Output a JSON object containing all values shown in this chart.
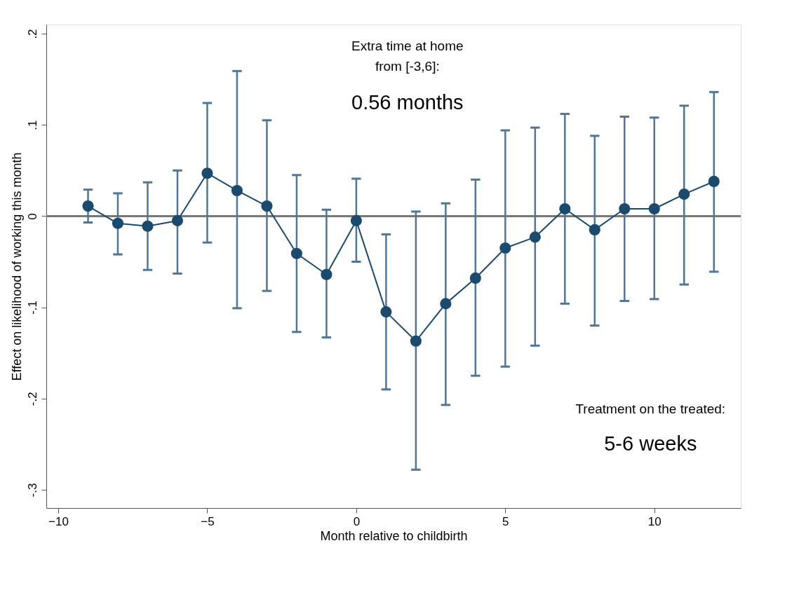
{
  "chart_data": {
    "type": "line",
    "xlabel": "Month relative to childbirth",
    "ylabel": "Effect on likelihood of working this month",
    "x": [
      -9,
      -8,
      -7,
      -6,
      -5,
      -4,
      -3,
      -2,
      -1,
      0,
      1,
      2,
      3,
      4,
      5,
      6,
      7,
      8,
      9,
      10,
      11,
      12
    ],
    "series": [
      {
        "color": "#1a4a6e",
        "values": [
          0.011,
          -0.008,
          -0.011,
          -0.005,
          0.047,
          0.028,
          0.011,
          -0.041,
          -0.064,
          -0.005,
          -0.105,
          -0.137,
          -0.096,
          -0.068,
          -0.035,
          -0.023,
          0.008,
          -0.015,
          0.008,
          0.008,
          0.024,
          0.038
        ],
        "errors": [
          [
            -0.007,
            0.029
          ],
          [
            -0.042,
            0.025
          ],
          [
            -0.059,
            0.037
          ],
          [
            -0.063,
            0.05
          ],
          [
            -0.029,
            0.124
          ],
          [
            -0.101,
            0.159
          ],
          [
            -0.082,
            0.105
          ],
          [
            -0.127,
            0.045
          ],
          [
            -0.133,
            0.007
          ],
          [
            -0.05,
            0.041
          ],
          [
            -0.19,
            -0.02
          ],
          [
            -0.278,
            0.005
          ],
          [
            -0.207,
            0.014
          ],
          [
            -0.175,
            0.04
          ],
          [
            -0.165,
            0.094
          ],
          [
            -0.142,
            0.097
          ],
          [
            -0.096,
            0.112
          ],
          [
            -0.12,
            0.088
          ],
          [
            -0.093,
            0.109
          ],
          [
            -0.091,
            0.108
          ],
          [
            -0.075,
            0.121
          ],
          [
            -0.061,
            0.136
          ]
        ]
      }
    ],
    "xlim": [
      -10.4,
      12.9
    ],
    "xticks": [
      -10,
      -5,
      0,
      5,
      10
    ],
    "ylim": [
      -0.32,
      0.21
    ],
    "yticks": [
      {
        "value": -0.3,
        "label": "-.3"
      },
      {
        "value": -0.2,
        "label": "-.2"
      },
      {
        "value": -0.1,
        "label": "-.1"
      },
      {
        "value": 0,
        "label": "0"
      },
      {
        "value": 0.1,
        "label": ".1"
      },
      {
        "value": 0.2,
        "label": ".2"
      }
    ],
    "ref_lines": [
      {
        "axis": "y",
        "value": 0,
        "color": "#777777"
      }
    ],
    "marker": "circle",
    "grid": false,
    "annotations": [
      "Extra time at home\nfrom [-3,6]:",
      "0.56 months",
      "Treatment on the treated:",
      "5-6 weeks"
    ]
  }
}
